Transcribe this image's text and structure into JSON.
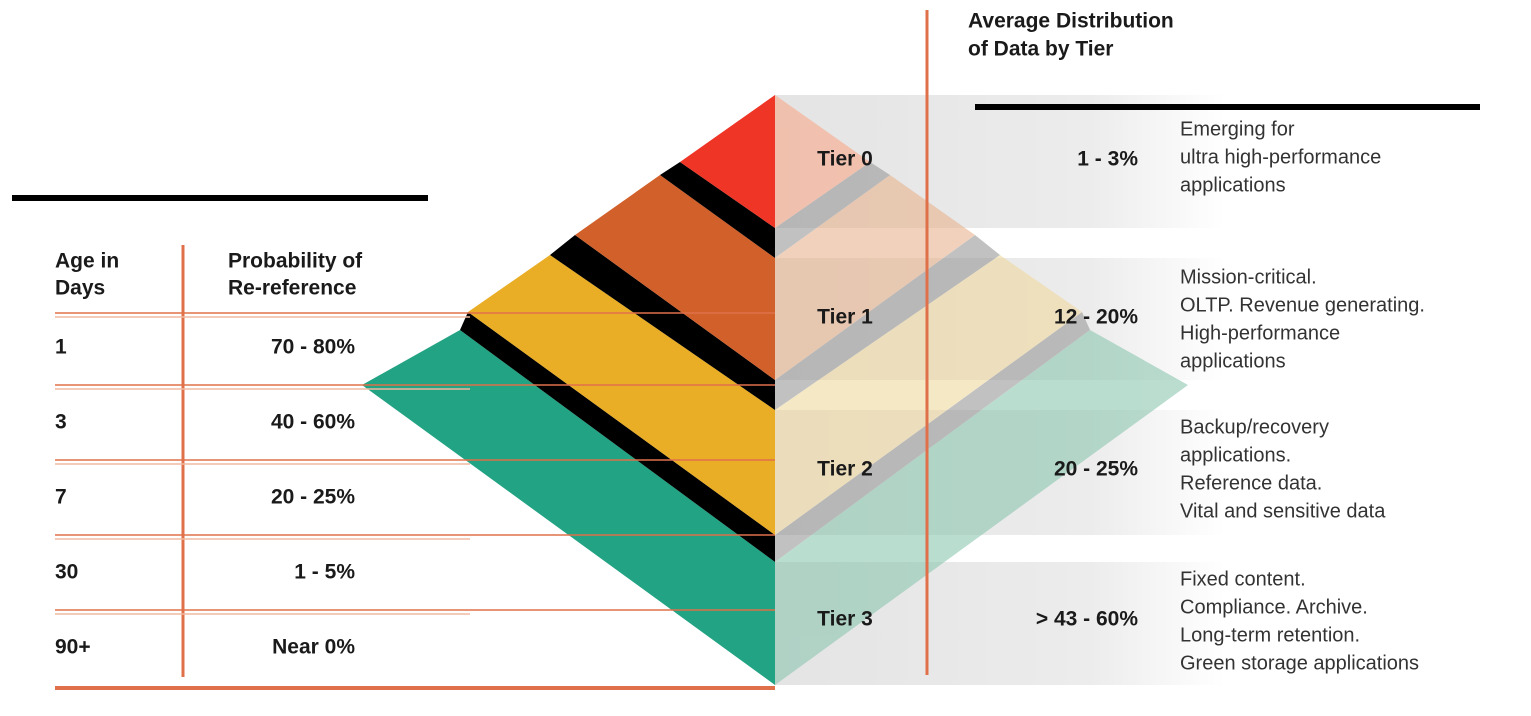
{
  "title": [
    "Average Distribution",
    "of Data by Tier"
  ],
  "table": {
    "headers": [
      [
        "Age in",
        "Days"
      ],
      [
        "Probability of",
        "Re-reference"
      ]
    ],
    "rows": [
      {
        "age": "1",
        "probability": "70 - 80%"
      },
      {
        "age": "3",
        "probability": "40 - 60%"
      },
      {
        "age": "7",
        "probability": "20 - 25%"
      },
      {
        "age": "30",
        "probability": "1 - 5%"
      },
      {
        "age": "90+",
        "probability": "Near 0%"
      }
    ]
  },
  "tiers": [
    {
      "name": "Tier 0",
      "distribution": "1 - 3%",
      "description": [
        "Emerging for",
        "ultra high-performance",
        "applications"
      ]
    },
    {
      "name": "Tier 1",
      "distribution": "12 - 20%",
      "description": [
        "Mission-critical.",
        "OLTP. Revenue generating.",
        "High-performance",
        "applications"
      ]
    },
    {
      "name": "Tier 2",
      "distribution": "20 - 25%",
      "description": [
        "Backup/recovery",
        "applications.",
        "Reference data.",
        "Vital and sensitive data"
      ]
    },
    {
      "name": "Tier 3",
      "distribution": "> 43 - 60%",
      "description": [
        "Fixed content.",
        "Compliance. Archive.",
        "Long-term retention.",
        "Green storage applications"
      ]
    }
  ]
}
